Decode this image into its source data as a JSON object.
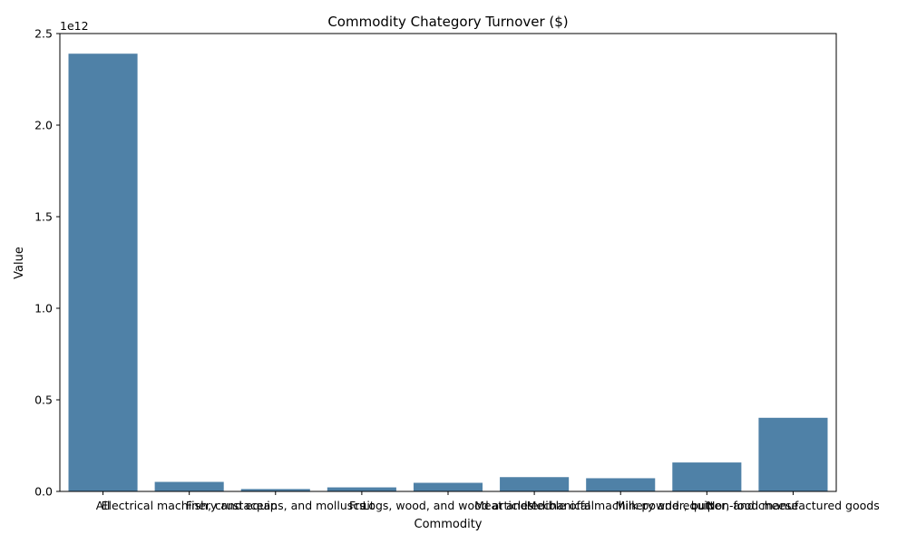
{
  "chart_data": {
    "type": "bar",
    "title": "Commodity Chategory Turnover ($)",
    "xlabel": "Commodity",
    "ylabel": "Value",
    "offset_text": "1e12",
    "categories": [
      "All",
      "Electrical machinery and equip",
      "Fish, crustaceans, and molluscs",
      "Fruit",
      "Logs, wood, and wood articles",
      "Meat and edible offal",
      "Mechanical machinery and equip",
      "Milk powder, butter, and cheese",
      "Non-food manufactured goods"
    ],
    "values": [
      2390000000000.0,
      52000000000.0,
      13000000000.0,
      22000000000.0,
      47000000000.0,
      78000000000.0,
      72000000000.0,
      158000000000.0,
      402000000000.0
    ],
    "ylim": [
      0,
      2500000000000.0
    ],
    "yticks": [
      0,
      500000000000.0,
      1000000000000.0,
      1500000000000.0,
      2000000000000.0,
      2500000000000.0
    ],
    "ytick_labels": [
      "0.0",
      "0.5",
      "1.0",
      "1.5",
      "2.0",
      "2.5"
    ],
    "bar_color": "#4f81a7",
    "grid": false,
    "legend": "none"
  }
}
